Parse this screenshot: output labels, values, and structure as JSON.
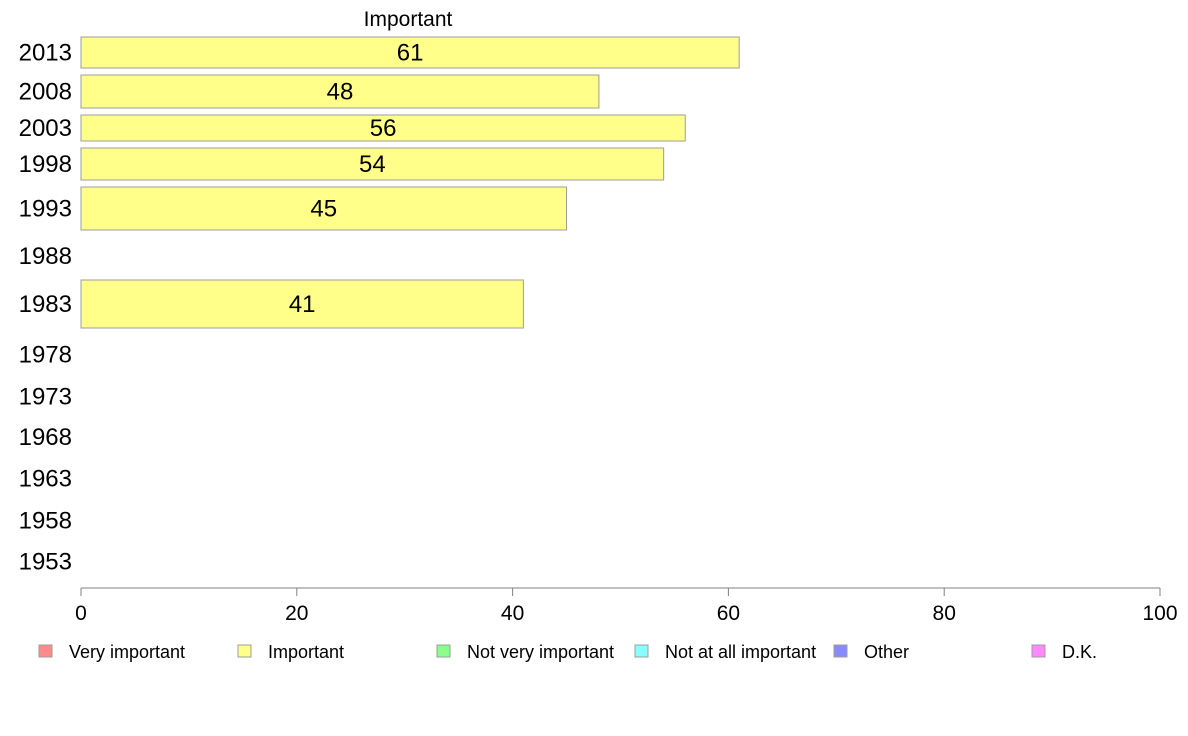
{
  "chart_data": {
    "type": "bar",
    "orientation": "horizontal",
    "title": "Important",
    "categories": [
      "2013",
      "2008",
      "2003",
      "1998",
      "1993",
      "1988",
      "1983",
      "1978",
      "1973",
      "1968",
      "1963",
      "1958",
      "1953"
    ],
    "series": [
      {
        "name": "Important",
        "values": [
          61,
          48,
          56,
          54,
          45,
          null,
          41,
          null,
          null,
          null,
          null,
          null,
          null
        ]
      }
    ],
    "xlim": [
      0,
      100
    ],
    "xticks": [
      0,
      20,
      40,
      60,
      80,
      100
    ],
    "grid": false,
    "legend_position": "bottom",
    "legend": [
      {
        "label": "Very important",
        "color": "#ff8a8a"
      },
      {
        "label": "Important",
        "color": "#ffff8a"
      },
      {
        "label": "Not very important",
        "color": "#8aff8a"
      },
      {
        "label": "Not at all important",
        "color": "#8affff"
      },
      {
        "label": "Other",
        "color": "#8a8aff"
      },
      {
        "label": "D.K.",
        "color": "#ff8aff"
      }
    ],
    "bar_color": "#ffff8a"
  }
}
